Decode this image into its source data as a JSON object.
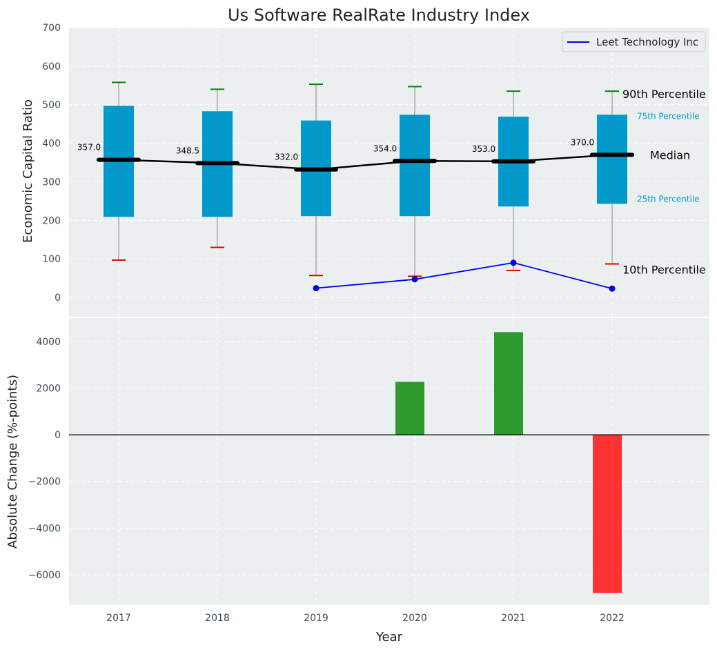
{
  "chart_data": {
    "title": "Us Software RealRate Industry Index",
    "xlabel": "Year",
    "years": [
      "2017",
      "2018",
      "2019",
      "2020",
      "2021",
      "2022"
    ],
    "top": {
      "type": "box",
      "ylabel": "Economic Capital Ratio",
      "ylim": [
        -50,
        700
      ],
      "yticks": [
        0,
        100,
        200,
        300,
        400,
        500,
        600,
        700
      ],
      "p10": [
        97,
        130,
        57,
        55,
        70,
        87
      ],
      "p25": [
        209,
        209,
        211,
        211,
        236,
        243
      ],
      "median": [
        357.0,
        348.5,
        332.0,
        354.0,
        353.0,
        370.0
      ],
      "median_labels": [
        "357.0",
        "348.5",
        "332.0",
        "354.0",
        "353.0",
        "370.0"
      ],
      "p75": [
        497,
        483,
        459,
        474,
        469,
        474
      ],
      "p90": [
        558,
        540,
        553,
        547,
        535,
        535
      ],
      "company_series": {
        "name": "Leet Technology Inc",
        "years": [
          "2019",
          "2020",
          "2021",
          "2022"
        ],
        "values": [
          24,
          47,
          90,
          23
        ],
        "color": "#0000ee"
      },
      "annotations": {
        "p90": "90th Percentile",
        "p75": "75th Percentile",
        "median": "Median",
        "p25": "25th Percentile",
        "p10": "10th Percentile"
      },
      "legend_position": "top-right"
    },
    "bottom": {
      "type": "bar",
      "ylabel": "Absolute Change (%-points)",
      "ylim": [
        -7300,
        5000
      ],
      "yticks": [
        4000,
        2000,
        0,
        -2000,
        -4000,
        -6000
      ],
      "ytick_labels": [
        "4000",
        "2000",
        "0",
        "−2000",
        "−4000",
        "−6000"
      ],
      "values": [
        null,
        null,
        null,
        2270,
        4400,
        -6780
      ],
      "positive_color": "#2e9a2e",
      "negative_color": "#ff3333"
    },
    "colors": {
      "box": "#0099cc",
      "median_line": "#000000",
      "p90_cap": "#008800",
      "p10_cap": "#dd0000",
      "background": "#ebeff0",
      "grid": "#ffffff"
    },
    "grid": true
  }
}
